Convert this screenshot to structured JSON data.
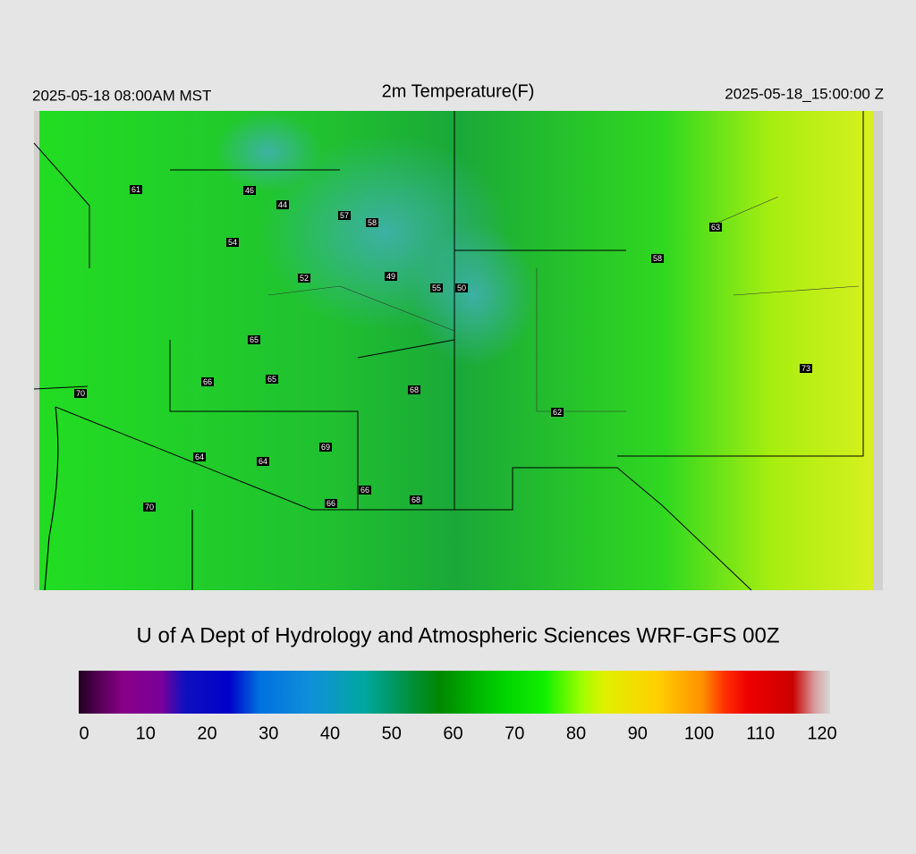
{
  "header": {
    "left": "2025-05-18 08:00AM MST",
    "title": "2m Temperature(F)",
    "right": "2025-05-18_15:00:00 Z"
  },
  "map": {
    "stations": [
      61,
      46,
      44,
      57,
      58,
      54,
      52,
      49,
      55,
      50,
      63,
      58,
      65,
      66,
      65,
      68,
      70,
      62,
      73,
      69,
      64,
      64,
      66,
      68,
      66,
      70
    ]
  },
  "footer": {
    "credit": "U of A Dept of Hydrology and Atmospheric Sciences WRF-GFS 00Z"
  },
  "colorbar": {
    "lim": [
      0,
      120
    ],
    "ticks": [
      0,
      10,
      20,
      30,
      40,
      50,
      60,
      70,
      80,
      90,
      100,
      110,
      120
    ]
  }
}
